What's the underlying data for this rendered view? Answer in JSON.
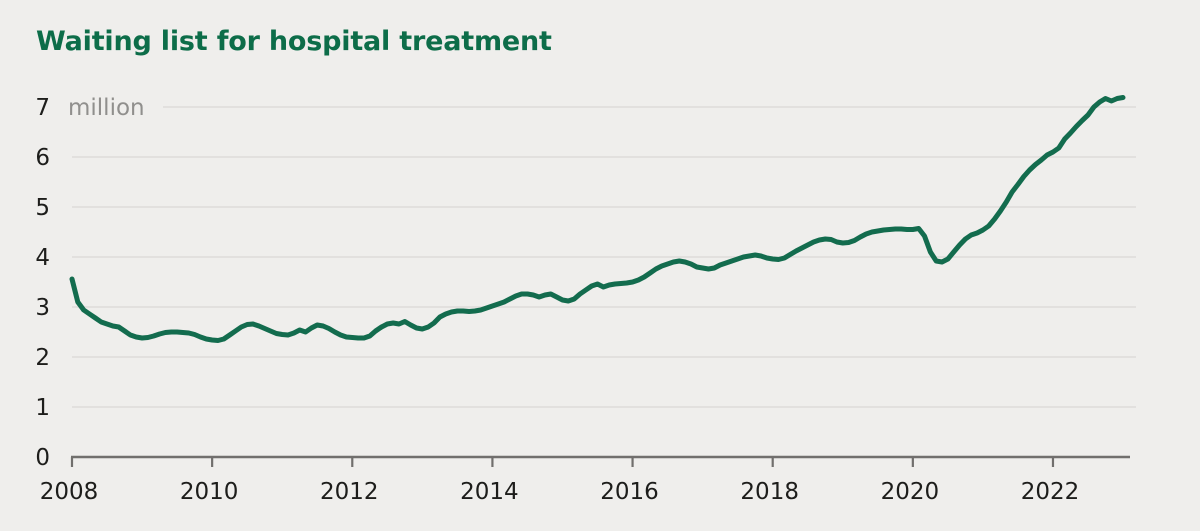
{
  "title": "Waiting list for hospital treatment",
  "colors": {
    "background": "#efeeec",
    "title_green": "#0d6d49",
    "line_green": "#136c4e",
    "gridline": "#dedcda",
    "axis": "#716f6d",
    "tick_label": "#1d1d1b",
    "unit_label": "#908f8d"
  },
  "chart_data": {
    "type": "line",
    "title": "Waiting list for hospital treatment",
    "unit_label": "million",
    "ylabel": "",
    "xlabel": "",
    "ylim": [
      0,
      7.4
    ],
    "xlim": [
      2008,
      2023.2
    ],
    "grid": "horizontal-only",
    "legend": "none",
    "y_ticks": [
      0,
      1,
      2,
      3,
      4,
      5,
      6,
      7
    ],
    "x_tick_years": [
      2008,
      2010,
      2012,
      2014,
      2016,
      2018,
      2020,
      2022
    ],
    "x_start_year": 2008,
    "points_per_year": 12,
    "values": [
      3.56,
      3.1,
      2.94,
      2.86,
      2.78,
      2.7,
      2.66,
      2.62,
      2.6,
      2.52,
      2.44,
      2.4,
      2.38,
      2.39,
      2.42,
      2.46,
      2.49,
      2.5,
      2.5,
      2.49,
      2.48,
      2.45,
      2.4,
      2.36,
      2.34,
      2.33,
      2.36,
      2.44,
      2.52,
      2.6,
      2.65,
      2.66,
      2.62,
      2.57,
      2.52,
      2.47,
      2.45,
      2.44,
      2.48,
      2.54,
      2.5,
      2.58,
      2.64,
      2.62,
      2.57,
      2.5,
      2.44,
      2.4,
      2.39,
      2.38,
      2.38,
      2.42,
      2.52,
      2.6,
      2.66,
      2.68,
      2.66,
      2.71,
      2.64,
      2.58,
      2.56,
      2.6,
      2.68,
      2.8,
      2.86,
      2.9,
      2.92,
      2.92,
      2.91,
      2.92,
      2.94,
      2.98,
      3.02,
      3.06,
      3.1,
      3.16,
      3.22,
      3.26,
      3.26,
      3.24,
      3.2,
      3.24,
      3.26,
      3.2,
      3.14,
      3.12,
      3.16,
      3.26,
      3.34,
      3.42,
      3.46,
      3.4,
      3.44,
      3.46,
      3.47,
      3.48,
      3.5,
      3.54,
      3.6,
      3.68,
      3.76,
      3.82,
      3.86,
      3.9,
      3.92,
      3.9,
      3.86,
      3.8,
      3.78,
      3.76,
      3.78,
      3.84,
      3.88,
      3.92,
      3.96,
      4.0,
      4.02,
      4.04,
      4.02,
      3.98,
      3.96,
      3.95,
      3.98,
      4.05,
      4.12,
      4.18,
      4.24,
      4.3,
      4.34,
      4.36,
      4.35,
      4.3,
      4.28,
      4.29,
      4.33,
      4.4,
      4.46,
      4.5,
      4.52,
      4.54,
      4.55,
      4.56,
      4.56,
      4.55,
      4.55,
      4.57,
      4.42,
      4.1,
      3.92,
      3.9,
      3.96,
      4.1,
      4.24,
      4.36,
      4.44,
      4.48,
      4.54,
      4.62,
      4.76,
      4.92,
      5.1,
      5.3,
      5.45,
      5.61,
      5.74,
      5.85,
      5.94,
      6.04,
      6.1,
      6.18,
      6.36,
      6.48,
      6.61,
      6.73,
      6.84,
      7.0,
      7.1,
      7.17,
      7.12,
      7.17,
      7.19
    ]
  }
}
